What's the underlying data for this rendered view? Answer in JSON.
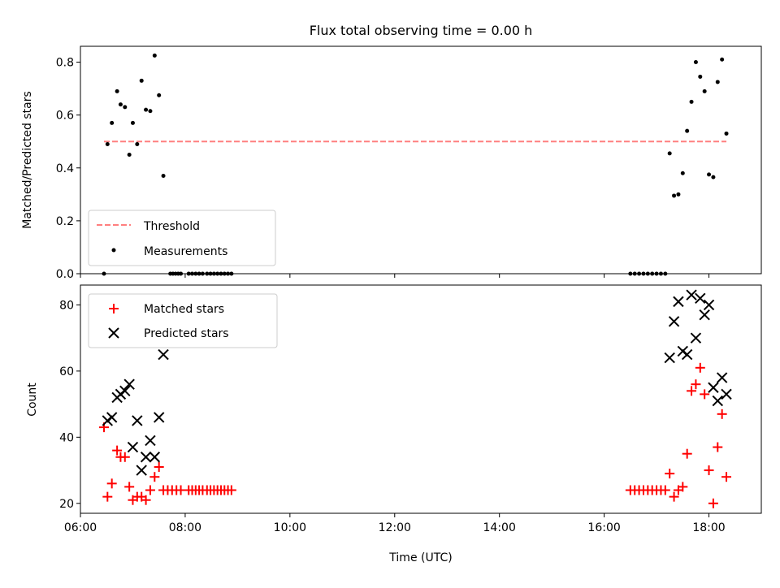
{
  "chart_data": [
    {
      "type": "scatter",
      "title": "Flux total observing time = 0.00 h",
      "xlabel": "",
      "ylabel": "Matched/Predicted stars",
      "xlim": [
        "06:00",
        "19:00"
      ],
      "ylim": [
        0,
        0.86
      ],
      "yticks": [
        0.0,
        0.2,
        0.4,
        0.6,
        0.8
      ],
      "ytick_labels": [
        "0.0",
        "0.2",
        "0.4",
        "0.6",
        "0.8"
      ],
      "threshold": {
        "name": "Threshold",
        "value": 0.5,
        "x_range": [
          "06:27",
          "18:20"
        ],
        "color": "#ff7f7f"
      },
      "legend": {
        "position": "lower-left",
        "entries": [
          "Threshold",
          "Measurements"
        ]
      },
      "series": [
        {
          "name": "Measurements",
          "color": "#000000",
          "points": [
            [
              "06:27",
              0.0
            ],
            [
              "06:31",
              0.49
            ],
            [
              "06:36",
              0.57
            ],
            [
              "06:42",
              0.69
            ],
            [
              "06:46",
              0.64
            ],
            [
              "06:51",
              0.63
            ],
            [
              "06:56",
              0.45
            ],
            [
              "07:00",
              0.57
            ],
            [
              "07:05",
              0.49
            ],
            [
              "07:10",
              0.73
            ],
            [
              "07:15",
              0.62
            ],
            [
              "07:20",
              0.615
            ],
            [
              "07:25",
              0.825
            ],
            [
              "07:30",
              0.675
            ],
            [
              "07:35",
              0.37
            ],
            [
              "07:43",
              0.0
            ],
            [
              "07:46",
              0.0
            ],
            [
              "07:49",
              0.0
            ],
            [
              "07:52",
              0.0
            ],
            [
              "07:55",
              0.0
            ],
            [
              "08:04",
              0.0
            ],
            [
              "08:08",
              0.0
            ],
            [
              "08:12",
              0.0
            ],
            [
              "08:16",
              0.0
            ],
            [
              "08:20",
              0.0
            ],
            [
              "08:25",
              0.0
            ],
            [
              "08:29",
              0.0
            ],
            [
              "08:33",
              0.0
            ],
            [
              "08:37",
              0.0
            ],
            [
              "08:41",
              0.0
            ],
            [
              "08:45",
              0.0
            ],
            [
              "08:49",
              0.0
            ],
            [
              "08:53",
              0.0
            ],
            [
              "16:30",
              0.0
            ],
            [
              "16:35",
              0.0
            ],
            [
              "16:40",
              0.0
            ],
            [
              "16:45",
              0.0
            ],
            [
              "16:50",
              0.0
            ],
            [
              "16:55",
              0.0
            ],
            [
              "17:00",
              0.0
            ],
            [
              "17:05",
              0.0
            ],
            [
              "17:10",
              0.0
            ],
            [
              "17:15",
              0.455
            ],
            [
              "17:20",
              0.295
            ],
            [
              "17:25",
              0.3
            ],
            [
              "17:30",
              0.38
            ],
            [
              "17:35",
              0.54
            ],
            [
              "17:40",
              0.65
            ],
            [
              "17:45",
              0.8
            ],
            [
              "17:50",
              0.745
            ],
            [
              "17:55",
              0.69
            ],
            [
              "18:00",
              0.375
            ],
            [
              "18:05",
              0.365
            ],
            [
              "18:10",
              0.725
            ],
            [
              "18:15",
              0.81
            ],
            [
              "18:20",
              0.53
            ]
          ]
        }
      ]
    },
    {
      "type": "scatter",
      "title": "",
      "xlabel": "Time (UTC)",
      "ylabel": "Count",
      "xlim": [
        "06:00",
        "19:00"
      ],
      "ylim": [
        17,
        86
      ],
      "xticks": [
        "06:00",
        "08:00",
        "10:00",
        "12:00",
        "14:00",
        "16:00",
        "18:00"
      ],
      "yticks": [
        20,
        40,
        60,
        80
      ],
      "ytick_labels": [
        "20",
        "40",
        "60",
        "80"
      ],
      "legend": {
        "position": "top-left",
        "entries": [
          "Matched stars",
          "Predicted stars"
        ]
      },
      "series": [
        {
          "name": "Matched stars",
          "marker": "plus",
          "color": "#ff0000",
          "points": [
            [
              "06:27",
              43
            ],
            [
              "06:31",
              22
            ],
            [
              "06:36",
              26
            ],
            [
              "06:42",
              36
            ],
            [
              "06:46",
              34
            ],
            [
              "06:51",
              34
            ],
            [
              "06:56",
              25
            ],
            [
              "07:00",
              21
            ],
            [
              "07:05",
              22
            ],
            [
              "07:10",
              22
            ],
            [
              "07:15",
              21
            ],
            [
              "07:20",
              24
            ],
            [
              "07:25",
              28
            ],
            [
              "07:30",
              31
            ],
            [
              "07:35",
              24
            ],
            [
              "07:40",
              24
            ],
            [
              "07:45",
              24
            ],
            [
              "07:50",
              24
            ],
            [
              "07:55",
              24
            ],
            [
              "08:04",
              24
            ],
            [
              "08:08",
              24
            ],
            [
              "08:12",
              24
            ],
            [
              "08:16",
              24
            ],
            [
              "08:20",
              24
            ],
            [
              "08:25",
              24
            ],
            [
              "08:29",
              24
            ],
            [
              "08:33",
              24
            ],
            [
              "08:37",
              24
            ],
            [
              "08:41",
              24
            ],
            [
              "08:45",
              24
            ],
            [
              "08:49",
              24
            ],
            [
              "08:53",
              24
            ],
            [
              "16:30",
              24
            ],
            [
              "16:35",
              24
            ],
            [
              "16:40",
              24
            ],
            [
              "16:45",
              24
            ],
            [
              "16:50",
              24
            ],
            [
              "16:55",
              24
            ],
            [
              "17:00",
              24
            ],
            [
              "17:05",
              24
            ],
            [
              "17:10",
              24
            ],
            [
              "17:15",
              29
            ],
            [
              "17:20",
              22
            ],
            [
              "17:25",
              24
            ],
            [
              "17:30",
              25
            ],
            [
              "17:35",
              35
            ],
            [
              "17:40",
              54
            ],
            [
              "17:45",
              56
            ],
            [
              "17:50",
              61
            ],
            [
              "17:55",
              53
            ],
            [
              "18:00",
              30
            ],
            [
              "18:05",
              20
            ],
            [
              "18:10",
              37
            ],
            [
              "18:15",
              47
            ],
            [
              "18:20",
              28
            ]
          ]
        },
        {
          "name": "Predicted stars",
          "marker": "x",
          "color": "#000000",
          "points": [
            [
              "06:31",
              45
            ],
            [
              "06:36",
              46
            ],
            [
              "06:42",
              52
            ],
            [
              "06:46",
              53
            ],
            [
              "06:51",
              54
            ],
            [
              "06:56",
              56
            ],
            [
              "07:00",
              37
            ],
            [
              "07:05",
              45
            ],
            [
              "07:10",
              30
            ],
            [
              "07:15",
              34
            ],
            [
              "07:20",
              39
            ],
            [
              "07:25",
              34
            ],
            [
              "07:30",
              46
            ],
            [
              "07:35",
              65
            ],
            [
              "17:15",
              64
            ],
            [
              "17:20",
              75
            ],
            [
              "17:25",
              81
            ],
            [
              "17:30",
              66
            ],
            [
              "17:35",
              65
            ],
            [
              "17:40",
              83
            ],
            [
              "17:45",
              70
            ],
            [
              "17:50",
              82
            ],
            [
              "17:55",
              77
            ],
            [
              "18:00",
              80
            ],
            [
              "18:05",
              55
            ],
            [
              "18:10",
              51
            ],
            [
              "18:15",
              58
            ],
            [
              "18:20",
              53
            ]
          ]
        }
      ]
    }
  ]
}
